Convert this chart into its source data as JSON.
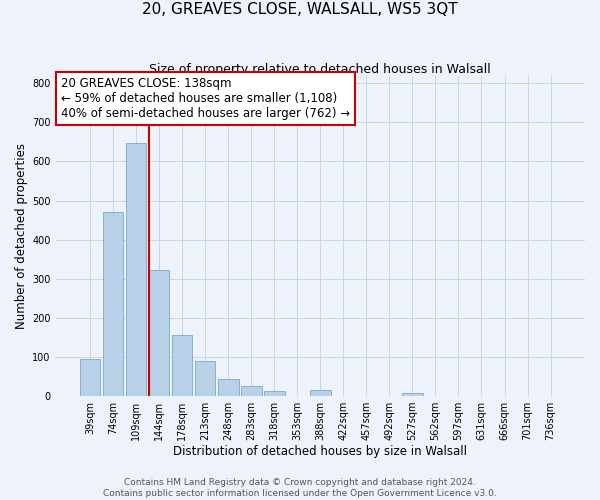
{
  "title": "20, GREAVES CLOSE, WALSALL, WS5 3QT",
  "subtitle": "Size of property relative to detached houses in Walsall",
  "xlabel": "Distribution of detached houses by size in Walsall",
  "ylabel": "Number of detached properties",
  "bar_labels": [
    "39sqm",
    "74sqm",
    "109sqm",
    "144sqm",
    "178sqm",
    "213sqm",
    "248sqm",
    "283sqm",
    "318sqm",
    "353sqm",
    "388sqm",
    "422sqm",
    "457sqm",
    "492sqm",
    "527sqm",
    "562sqm",
    "597sqm",
    "631sqm",
    "666sqm",
    "701sqm",
    "736sqm"
  ],
  "bar_values": [
    95,
    472,
    648,
    322,
    157,
    90,
    43,
    26,
    14,
    0,
    15,
    0,
    0,
    0,
    8,
    0,
    0,
    0,
    0,
    0,
    0
  ],
  "bar_color": "#b8d0e8",
  "bar_edge_color": "#7aaac8",
  "background_color": "#eef2fb",
  "grid_color": "#c5d5e8",
  "vline_color": "#cc0000",
  "annotation_text": "20 GREAVES CLOSE: 138sqm\n← 59% of detached houses are smaller (1,108)\n40% of semi-detached houses are larger (762) →",
  "annotation_box_facecolor": "#ffffff",
  "annotation_box_edgecolor": "#cc0000",
  "ylim": [
    0,
    820
  ],
  "yticks": [
    0,
    100,
    200,
    300,
    400,
    500,
    600,
    700,
    800
  ],
  "footer_text": "Contains HM Land Registry data © Crown copyright and database right 2024.\nContains public sector information licensed under the Open Government Licence v3.0.",
  "title_fontsize": 11,
  "subtitle_fontsize": 9,
  "xlabel_fontsize": 8.5,
  "ylabel_fontsize": 8.5,
  "tick_fontsize": 7,
  "annotation_fontsize": 8.5,
  "footer_fontsize": 6.5
}
